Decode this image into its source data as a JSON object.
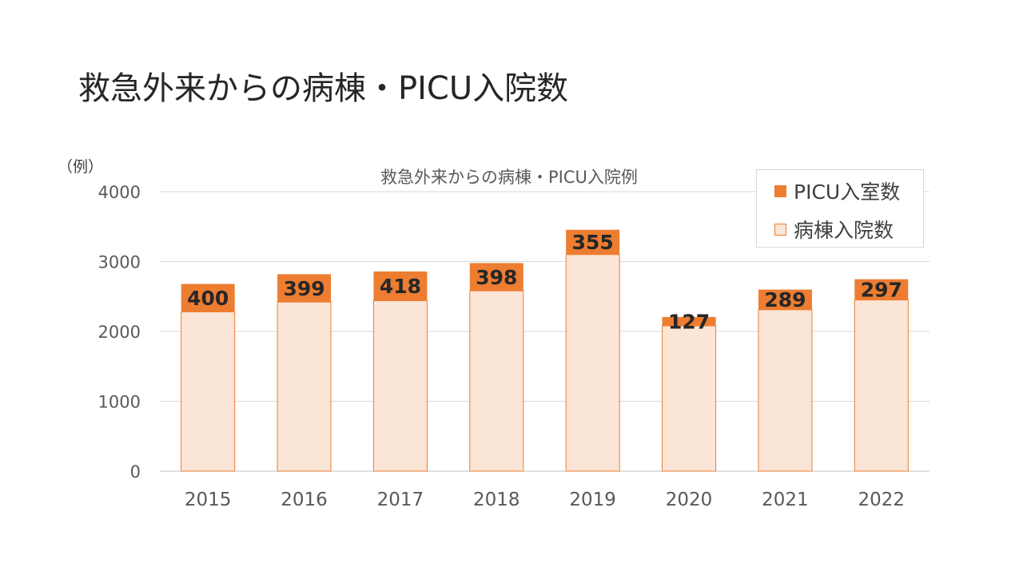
{
  "slide": {
    "title": "救急外来からの病棟・PICU入院数",
    "unit": "（例）"
  },
  "chart_data": {
    "type": "bar",
    "stacked": true,
    "title": "救急外来からの病棟・PICU入院例",
    "categories": [
      "2015",
      "2016",
      "2017",
      "2018",
      "2019",
      "2020",
      "2021",
      "2022"
    ],
    "series": [
      {
        "name": "病棟入院数",
        "values": [
          2280,
          2420,
          2440,
          2580,
          3100,
          2080,
          2310,
          2450
        ],
        "color": "#fbe5d6",
        "edge": "#ed7d31"
      },
      {
        "name": "PICU入室数",
        "values": [
          400,
          399,
          418,
          398,
          355,
          127,
          289,
          297
        ],
        "color": "#ed7d31",
        "data_labels": true
      }
    ],
    "ylim": [
      0,
      4000
    ],
    "yticks": [
      0,
      1000,
      2000,
      3000,
      4000
    ],
    "grid": true,
    "legend_position": "top-right"
  }
}
